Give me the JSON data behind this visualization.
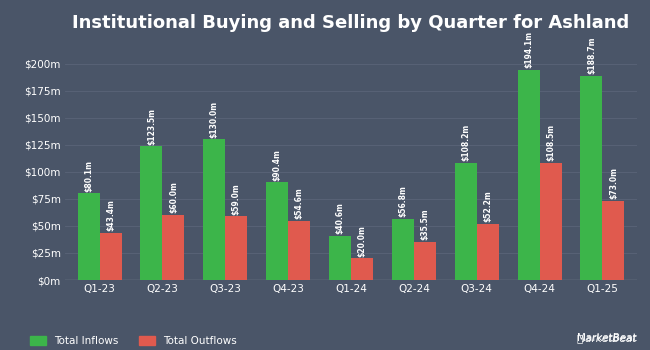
{
  "title": "Institutional Buying and Selling by Quarter for Ashland",
  "quarters": [
    "Q1-23",
    "Q2-23",
    "Q3-23",
    "Q4-23",
    "Q1-24",
    "Q2-24",
    "Q3-24",
    "Q4-24",
    "Q1-25"
  ],
  "inflows": [
    80.1,
    123.5,
    130.0,
    90.4,
    40.6,
    56.8,
    108.2,
    194.1,
    188.7
  ],
  "outflows": [
    43.4,
    60.0,
    59.0,
    54.6,
    20.0,
    35.5,
    52.2,
    108.5,
    73.0
  ],
  "inflow_labels": [
    "$80.1m",
    "$123.5m",
    "$130.0m",
    "$90.4m",
    "$40.6m",
    "$56.8m",
    "$108.2m",
    "$194.1m",
    "$188.7m"
  ],
  "outflow_labels": [
    "$43.4m",
    "$60.0m",
    "$59.0m",
    "$54.6m",
    "$20.0m",
    "$35.5m",
    "$52.2m",
    "$108.5m",
    "$73.0m"
  ],
  "inflow_color": "#3cb54a",
  "outflow_color": "#e05a4e",
  "background_color": "#4a5568",
  "plot_bg_color": "#4a5568",
  "text_color": "#ffffff",
  "grid_color": "#5a6478",
  "ylabel_ticks": [
    0,
    25,
    50,
    75,
    100,
    125,
    150,
    175,
    200
  ],
  "ylabel_labels": [
    "$0m",
    "$25m",
    "$50m",
    "$75m",
    "$100m",
    "$125m",
    "$150m",
    "$175m",
    "$200m"
  ],
  "ylim": [
    0,
    220
  ],
  "legend_inflow": "Total Inflows",
  "legend_outflow": "Total Outflows",
  "bar_width": 0.35,
  "title_fontsize": 13,
  "tick_fontsize": 7.5,
  "label_fontsize": 5.5
}
